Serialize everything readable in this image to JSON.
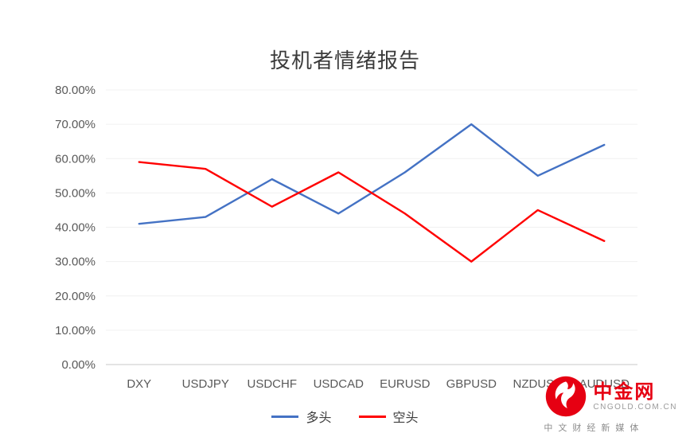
{
  "chart_data": {
    "type": "line",
    "title": "投机者情绪报告",
    "categories": [
      "DXY",
      "USDJPY",
      "USDCHF",
      "USDCAD",
      "EURUSD",
      "GBPUSD",
      "NZDUSD",
      "AUDUSD"
    ],
    "series": [
      {
        "name": "多头",
        "color": "#4472c4",
        "values": [
          41,
          43,
          54,
          44,
          56,
          70,
          55,
          64
        ]
      },
      {
        "name": "空头",
        "color": "#ff0000",
        "values": [
          59,
          57,
          46,
          56,
          44,
          30,
          45,
          36
        ]
      }
    ],
    "ylim": [
      0,
      80
    ],
    "y_tick_step": 10,
    "y_tick_suffix": "%",
    "y_tick_labels": [
      "0.00%",
      "10.00%",
      "20.00%",
      "30.00%",
      "40.00%",
      "50.00%",
      "60.00%",
      "70.00%",
      "80.00%"
    ],
    "grid": true,
    "legend_position": "bottom",
    "xlabel": "",
    "ylabel": ""
  },
  "watermark": {
    "brand": "中金网",
    "domain": "CNGOLD.COM.CN",
    "tagline": "中文财经新媒体",
    "logo_color": "#e60012"
  }
}
